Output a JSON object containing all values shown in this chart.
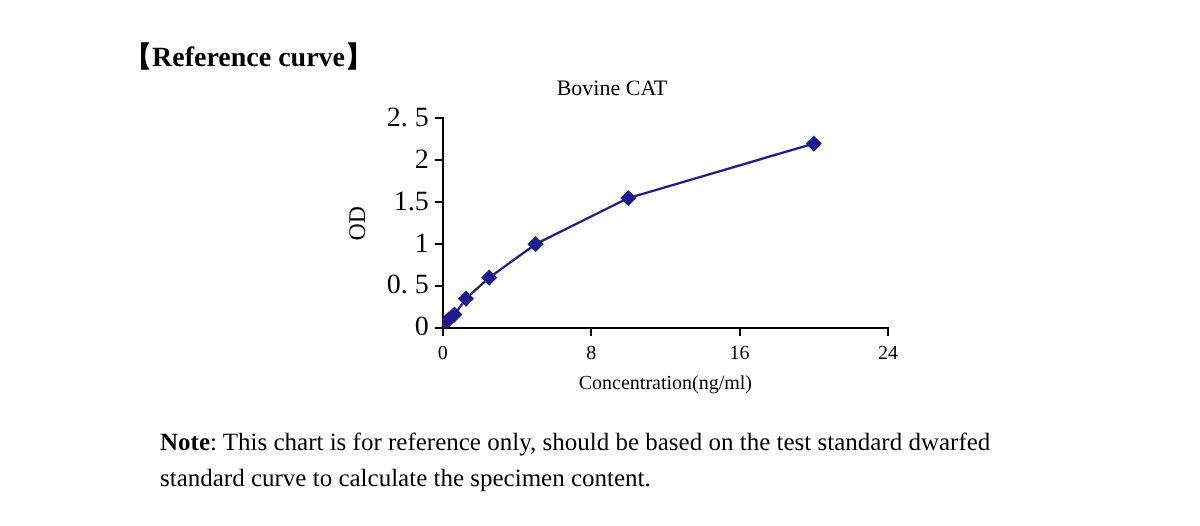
{
  "chart_data": {
    "type": "line",
    "title": "Bovine CAT",
    "xlabel": "Concentration(ng/ml)",
    "ylabel": "OD",
    "annotations": [
      "【Reference curve】",
      "Note: This chart is for reference only, should be based on the test standard dwarfed standard curve to calculate the specimen content."
    ],
    "x": [
      0,
      0.3125,
      0.625,
      1.25,
      2.5,
      5,
      10,
      20
    ],
    "series": [
      {
        "color": "#1c1c8c",
        "values": [
          0.05,
          0.1,
          0.16,
          0.35,
          0.6,
          1.0,
          1.55,
          2.2
        ]
      }
    ],
    "xlim": [
      0,
      24
    ],
    "xticks": [
      0,
      8,
      16,
      24
    ],
    "ylim": [
      0,
      2.5
    ],
    "yticks": [
      0,
      {
        "value": 0.5,
        "label": "0. 5"
      },
      1,
      1.5,
      2,
      {
        "value": 2.5,
        "label": "2. 5"
      }
    ],
    "grid": false,
    "legend": false,
    "marker": "diamond",
    "line_style": "solid"
  }
}
